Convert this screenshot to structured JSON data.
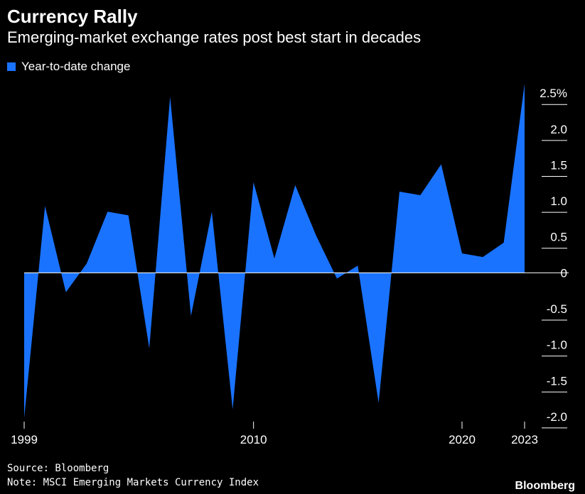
{
  "header": {
    "title": "Currency Rally",
    "subtitle": "Emerging-market exchange rates post best start in decades"
  },
  "footer": {
    "source": "Source: Bloomberg",
    "note": "Note: MSCI Emerging Markets Currency Index",
    "brand": "Bloomberg"
  },
  "colors": {
    "series": "#1a73ff",
    "background": "#000000",
    "text": "#ffffff"
  },
  "chart_data": {
    "type": "area",
    "title": "Currency Rally",
    "subtitle": "Emerging-market exchange rates post best start in decades",
    "legend": "top-left",
    "series": [
      {
        "name": "Year-to-date change",
        "x": [
          1999,
          2000,
          2001,
          2002,
          2003,
          2004,
          2005,
          2006,
          2007,
          2008,
          2009,
          2010,
          2011,
          2012,
          2013,
          2014,
          2015,
          2016,
          2017,
          2018,
          2019,
          2020,
          2021,
          2022,
          2023
        ],
        "values": [
          -2.02,
          0.93,
          -0.27,
          0.13,
          0.85,
          0.8,
          -1.05,
          2.45,
          -0.6,
          0.85,
          -1.9,
          1.26,
          0.2,
          1.22,
          0.52,
          -0.08,
          0.1,
          -1.81,
          1.13,
          1.08,
          1.51,
          0.27,
          0.22,
          0.42,
          2.63
        ]
      }
    ],
    "x_ticks": [
      1999,
      2010,
      2020,
      2023
    ],
    "x_tick_labels": [
      "1999",
      "2010",
      "2020",
      "2023"
    ],
    "y_ticks": [
      2.5,
      2.0,
      1.5,
      1.0,
      0.5,
      0,
      -0.5,
      -1.0,
      -1.5,
      -2.0
    ],
    "y_tick_labels": [
      "2.5%",
      "2.0",
      "1.5",
      "1.0",
      "0.5",
      "0",
      "-0.5",
      "-1.0",
      "-1.5",
      "-2.0"
    ],
    "ylim": [
      -2.0,
      2.5
    ],
    "xlim": [
      1999,
      2023
    ],
    "y_axis_side": "right",
    "grid": false
  }
}
